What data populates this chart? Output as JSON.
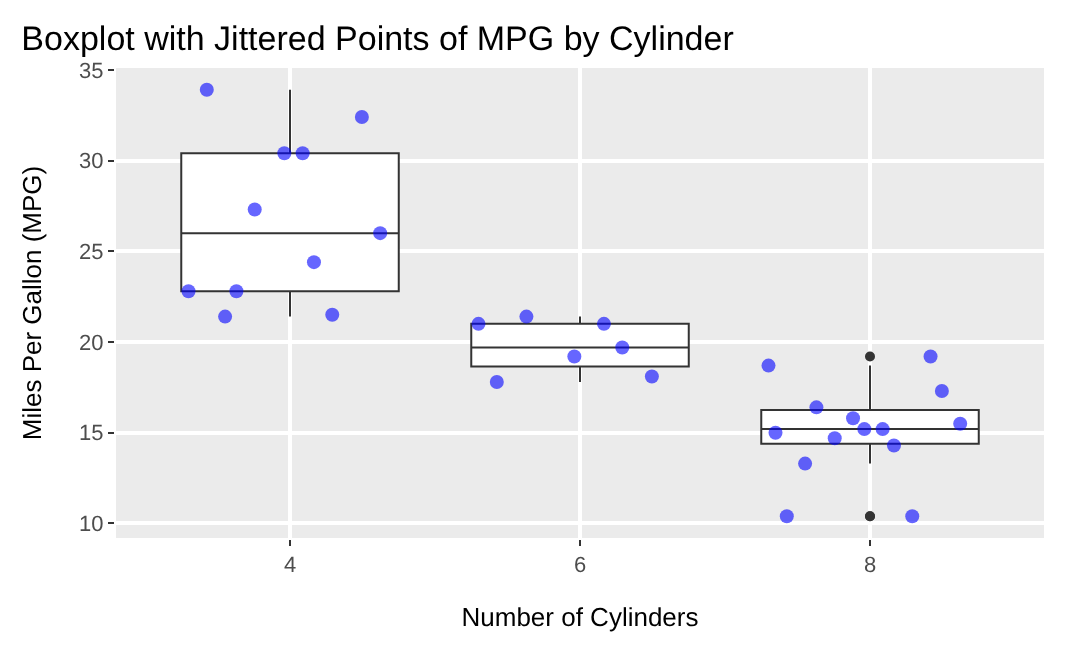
{
  "chart_data": {
    "type": "box",
    "title": "Boxplot with Jittered Points of MPG by Cylinder",
    "xlabel": "Number of Cylinders",
    "ylabel": "Miles Per Gallon (MPG)",
    "categories": [
      "4",
      "6",
      "8"
    ],
    "boxes": [
      {
        "low": 21.4,
        "q1": 22.8,
        "median": 26.0,
        "q3": 30.4,
        "high": 33.9
      },
      {
        "low": 17.8,
        "q1": 18.65,
        "median": 19.7,
        "q3": 21.0,
        "high": 21.4
      },
      {
        "low": 13.3,
        "q1": 14.4,
        "median": 15.2,
        "q3": 16.25,
        "high": 18.7,
        "outliers": [
          10.4,
          10.4,
          19.2
        ]
      }
    ],
    "series": [
      {
        "type": "scatter",
        "color": "#0000ff",
        "x": [
          "6",
          "6",
          "4",
          "6",
          "8",
          "6",
          "8",
          "4",
          "4",
          "6",
          "6",
          "8",
          "8",
          "8",
          "8",
          "8",
          "8",
          "4",
          "4",
          "4",
          "4",
          "8",
          "8",
          "8",
          "8",
          "4",
          "4",
          "4",
          "8",
          "6",
          "8",
          "4"
        ],
        "values": [
          21.0,
          21.0,
          22.8,
          21.4,
          18.7,
          18.1,
          14.3,
          24.4,
          22.8,
          19.2,
          17.8,
          16.4,
          17.3,
          15.2,
          10.4,
          10.4,
          14.7,
          32.4,
          30.4,
          33.9,
          21.5,
          15.5,
          15.2,
          13.3,
          19.2,
          27.3,
          26.0,
          30.4,
          15.8,
          19.7,
          15.0,
          21.4
        ]
      }
    ],
    "ylim": [
      9.2,
      35.1
    ],
    "yticks": [
      10,
      15,
      20,
      25,
      30,
      35
    ],
    "grid": true,
    "marker": "circle"
  }
}
